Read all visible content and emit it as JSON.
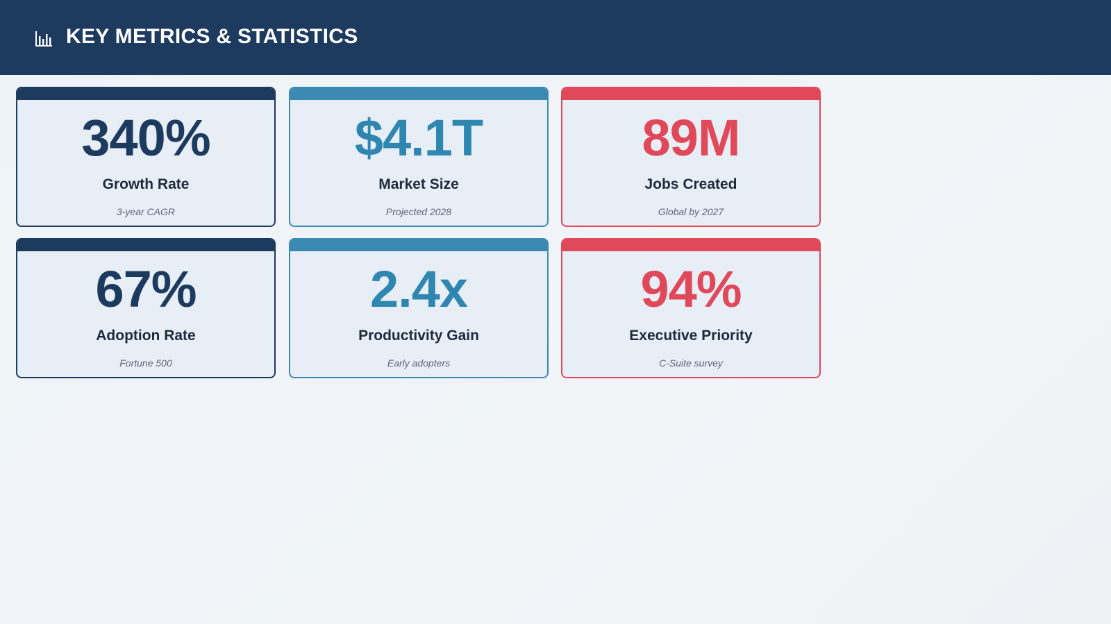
{
  "header": {
    "icon": "bar-chart-icon",
    "title": "KEY METRICS & STATISTICS"
  },
  "colors": {
    "header_bg": "#1d3a5f",
    "navy": "#1d3a5f",
    "teal": "#3a8ab3",
    "red": "#e0495a",
    "card_bg": "#e8eef5"
  },
  "cards": [
    {
      "value": "340%",
      "label": "Growth Rate",
      "sub": "3-year CAGR",
      "theme": "navy"
    },
    {
      "value": "$4.1T",
      "label": "Market Size",
      "sub": "Projected 2028",
      "theme": "teal"
    },
    {
      "value": "89M",
      "label": "Jobs Created",
      "sub": "Global by 2027",
      "theme": "red"
    },
    {
      "value": "67%",
      "label": "Adoption Rate",
      "sub": "Fortune 500",
      "theme": "navy"
    },
    {
      "value": "2.4x",
      "label": "Productivity Gain",
      "sub": "Early adopters",
      "theme": "teal"
    },
    {
      "value": "94%",
      "label": "Executive Priority",
      "sub": "C-Suite survey",
      "theme": "red"
    }
  ]
}
